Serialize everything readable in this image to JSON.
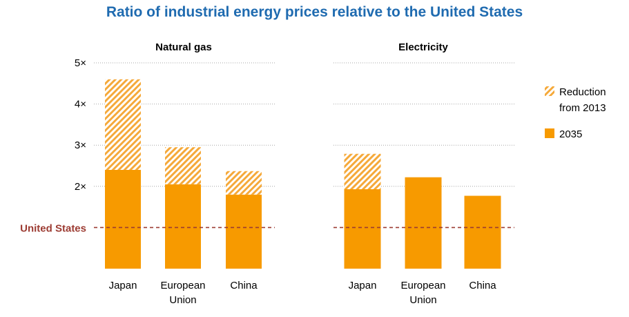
{
  "title": "Ratio of industrial energy prices relative to the United States",
  "colors": {
    "title": "#1f6bb0",
    "bar": "#f79a00",
    "hatch": "#f5a93a",
    "us_line": "#9c3b32",
    "grid": "#a6a6a6",
    "text": "#000000"
  },
  "reference_label": "United States",
  "legend": {
    "reduction": {
      "line1": "Reduction",
      "line2": "from 2013"
    },
    "y2035": "2035"
  },
  "chart_data": [
    {
      "type": "bar",
      "title": "Natural gas",
      "categories": [
        [
          "Japan"
        ],
        [
          "European",
          "Union"
        ],
        [
          "China"
        ]
      ],
      "series": [
        {
          "name": "2035",
          "values": [
            2.4,
            2.05,
            1.8
          ]
        },
        {
          "name": "Reduction from 2013",
          "values": [
            2.2,
            0.9,
            0.57
          ]
        }
      ],
      "reference_line": {
        "value": 1,
        "label": "United States"
      },
      "ylim": [
        0,
        5
      ],
      "yticks": [
        2,
        3,
        4,
        5
      ],
      "ytick_labels": [
        "2×",
        "3×",
        "4×",
        "5×"
      ],
      "grid": true
    },
    {
      "type": "bar",
      "title": "Electricity",
      "categories": [
        [
          "Japan"
        ],
        [
          "European",
          "Union"
        ],
        [
          "China"
        ]
      ],
      "series": [
        {
          "name": "2035",
          "values": [
            1.93,
            2.22,
            1.77
          ]
        },
        {
          "name": "Reduction from 2013",
          "values": [
            0.86,
            0,
            0
          ]
        }
      ],
      "reference_line": {
        "value": 1,
        "label": "United States"
      },
      "ylim": [
        0,
        5
      ],
      "grid": true,
      "legend_position": "right"
    }
  ]
}
